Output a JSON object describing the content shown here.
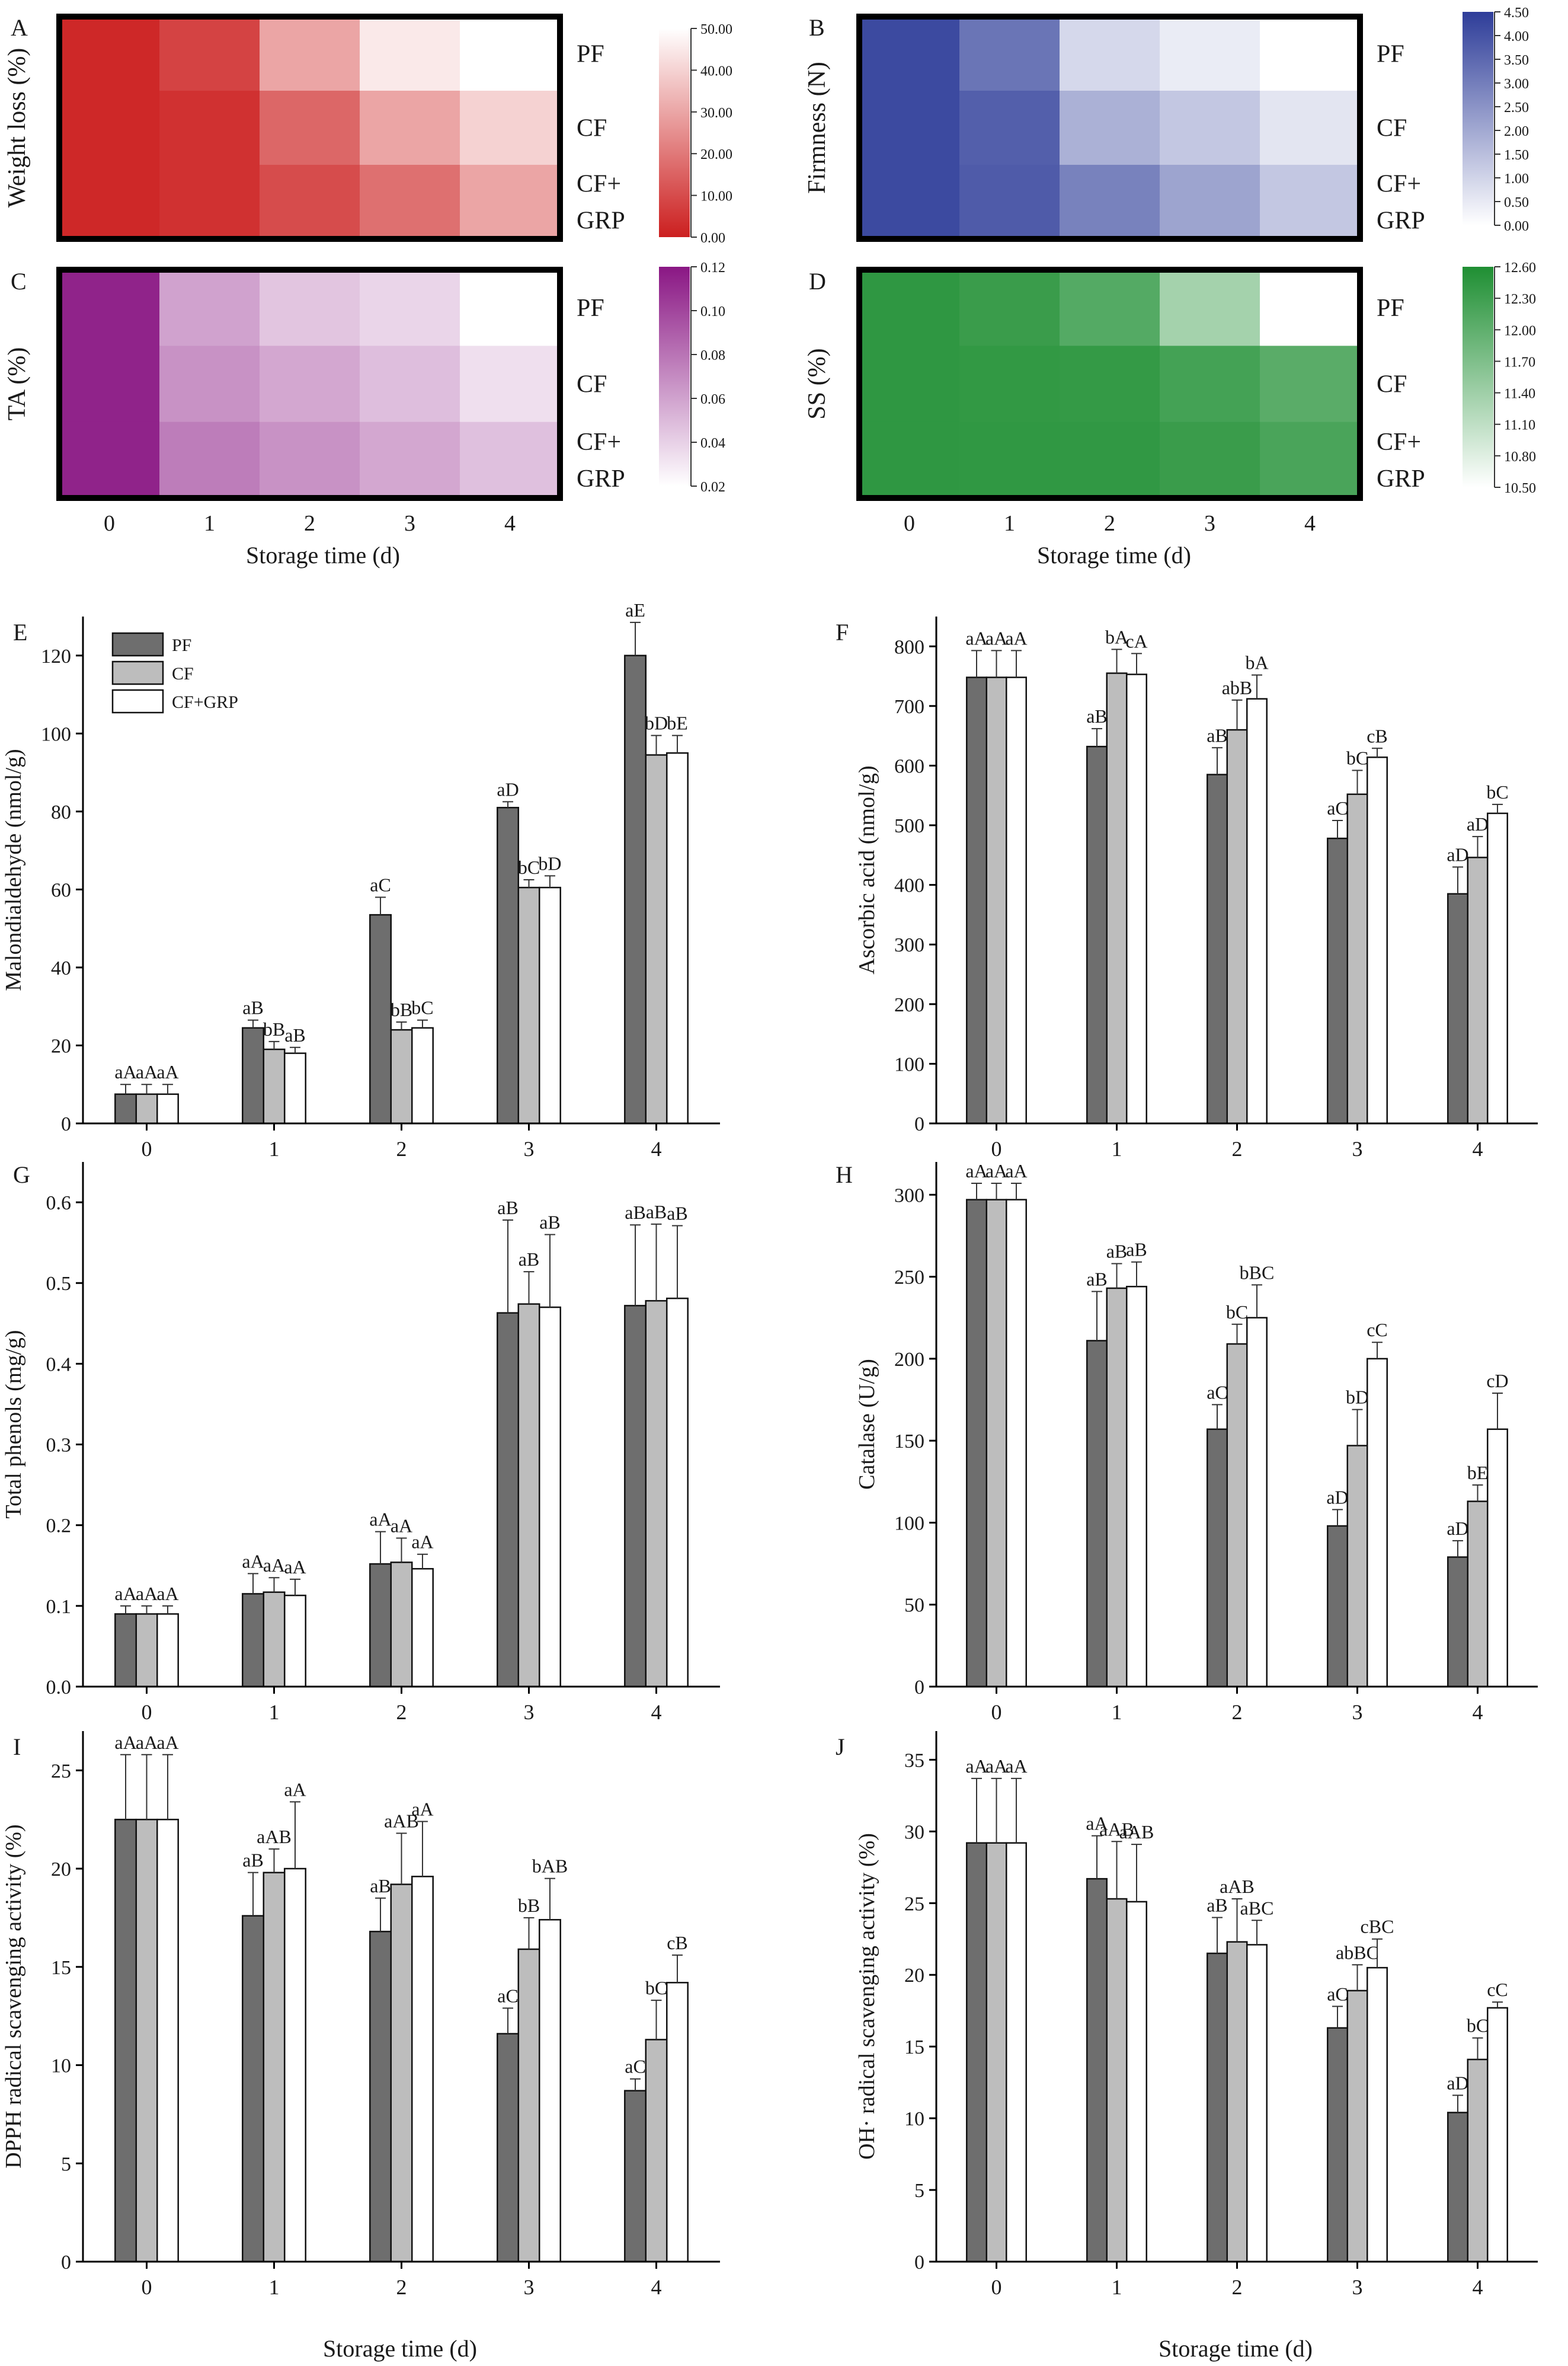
{
  "figure": {
    "storage_time_label": "Storage time (d)",
    "days": [
      "0",
      "1",
      "2",
      "3",
      "4"
    ],
    "treatments": [
      "PF",
      "CF",
      "CF+GRP"
    ],
    "heatmap_row_labels": [
      "PF",
      "CF",
      "CF+\nGRP"
    ],
    "colors": {
      "PF": "#6e6e6e",
      "CF": "#bdbdbd",
      "CF+GRP": "#ffffff",
      "axis": "#1a1a1a"
    }
  },
  "chart_data": [
    {
      "panel": "A",
      "type": "heatmap",
      "ylabel": "Weight loss (%)",
      "colormap": [
        "#cc1f1f",
        "#ffffff"
      ],
      "colorbar": {
        "ticks": [
          "50.00",
          "40.00",
          "30.00",
          "20.00",
          "10.00",
          "0.00"
        ],
        "min": 0,
        "max": 50
      },
      "rows": [
        "PF",
        "CF",
        "CF+GRP"
      ],
      "cols": [
        "0",
        "1",
        "2",
        "3",
        "4"
      ],
      "values": [
        [
          2,
          8,
          30,
          45,
          55
        ],
        [
          2,
          4,
          16,
          30,
          40
        ],
        [
          2,
          4,
          10,
          18,
          30
        ]
      ]
    },
    {
      "panel": "B",
      "type": "heatmap",
      "ylabel": "Firmness (N)",
      "colormap": [
        "#ffffff",
        "#2e3d99"
      ],
      "colorbar": {
        "ticks": [
          "4.50",
          "4.00",
          "3.50",
          "3.00",
          "2.50",
          "2.00",
          "1.50",
          "1.00",
          "0.50",
          "0.00"
        ],
        "min": 0,
        "max": 4.5
      },
      "rows": [
        "PF",
        "CF",
        "CF+GRP"
      ],
      "cols": [
        "0",
        "1",
        "2",
        "3",
        "4"
      ],
      "values": [
        [
          4.2,
          3.2,
          0.9,
          0.45,
          0.0
        ],
        [
          4.2,
          3.7,
          1.8,
          1.3,
          0.6
        ],
        [
          4.2,
          3.8,
          2.9,
          2.1,
          1.3
        ]
      ]
    },
    {
      "panel": "C",
      "type": "heatmap",
      "ylabel": "TA (%)",
      "colormap": [
        "#ffffff",
        "#8a1784"
      ],
      "colorbar": {
        "ticks": [
          "0.12",
          "0.10",
          "0.08",
          "0.06",
          "0.04",
          "0.02"
        ],
        "min": 0.02,
        "max": 0.12
      },
      "rows": [
        "PF",
        "CF",
        "CF+GRP"
      ],
      "cols": [
        "0",
        "1",
        "2",
        "3",
        "4"
      ],
      "values": [
        [
          0.115,
          0.06,
          0.045,
          0.038,
          0.018
        ],
        [
          0.115,
          0.067,
          0.058,
          0.048,
          0.034
        ],
        [
          0.115,
          0.076,
          0.067,
          0.058,
          0.047
        ]
      ]
    },
    {
      "panel": "D",
      "type": "heatmap",
      "ylabel": "SS (%)",
      "colormap": [
        "#ffffff",
        "#1f8f33"
      ],
      "colorbar": {
        "ticks": [
          "12.60",
          "12.30",
          "12.00",
          "11.70",
          "11.40",
          "11.10",
          "10.80",
          "10.50"
        ],
        "min": 10.5,
        "max": 12.6
      },
      "rows": [
        "PF",
        "CF",
        "CF+GRP"
      ],
      "cols": [
        "0",
        "1",
        "2",
        "3",
        "4"
      ],
      "values": [
        [
          12.45,
          12.35,
          12.1,
          11.35,
          10.45
        ],
        [
          12.45,
          12.42,
          12.4,
          12.25,
          12.05
        ],
        [
          12.45,
          12.44,
          12.43,
          12.35,
          12.2
        ]
      ]
    },
    {
      "panel": "E",
      "type": "bar",
      "ylabel": "Malondialdehyde (nmol/g)",
      "ylim": [
        0,
        130
      ],
      "yticks": [
        "0",
        "20",
        "40",
        "60",
        "80",
        "100",
        "120"
      ],
      "legend": [
        "PF",
        "CF",
        "CF+GRP"
      ],
      "series": [
        {
          "name": "PF",
          "values": [
            7.5,
            24.5,
            53.5,
            81.0,
            120.0
          ],
          "err": [
            2.5,
            2.0,
            4.5,
            1.5,
            8.5
          ],
          "labels": [
            "aA",
            "aB",
            "aC",
            "aD",
            "aE"
          ]
        },
        {
          "name": "CF",
          "values": [
            7.5,
            19.0,
            24.0,
            60.5,
            94.5
          ],
          "err": [
            2.5,
            2.0,
            2.0,
            2.0,
            5.0
          ],
          "labels": [
            "aA",
            "bB",
            "bB",
            "bC",
            "bD"
          ]
        },
        {
          "name": "CF+GRP",
          "values": [
            7.5,
            18.0,
            24.5,
            60.5,
            95.0
          ],
          "err": [
            2.5,
            1.5,
            2.0,
            3.0,
            4.5
          ],
          "labels": [
            "aA",
            "aB",
            "bC",
            "bD",
            "bE"
          ]
        }
      ]
    },
    {
      "panel": "F",
      "type": "bar",
      "ylabel": "Ascorbic acid (nmol/g)",
      "ylim": [
        0,
        850
      ],
      "yticks": [
        "0",
        "100",
        "200",
        "300",
        "400",
        "500",
        "600",
        "700",
        "800"
      ],
      "series": [
        {
          "name": "PF",
          "values": [
            748,
            632,
            585,
            478,
            385
          ],
          "err": [
            45,
            30,
            45,
            30,
            45
          ],
          "labels": [
            "aA",
            "aB",
            "aB",
            "aC",
            "aD"
          ]
        },
        {
          "name": "CF",
          "values": [
            748,
            755,
            660,
            552,
            446
          ],
          "err": [
            45,
            40,
            50,
            40,
            35
          ],
          "labels": [
            "aA",
            "bA",
            "abB",
            "bC",
            "aD"
          ]
        },
        {
          "name": "CF+GRP",
          "values": [
            748,
            753,
            712,
            614,
            520
          ],
          "err": [
            45,
            35,
            40,
            15,
            15
          ],
          "labels": [
            "aA",
            "cA",
            "bA",
            "cB",
            "bC"
          ]
        }
      ]
    },
    {
      "panel": "G",
      "type": "bar",
      "ylabel": "Total phenols (mg/g)",
      "ylim": [
        0,
        0.65
      ],
      "yticks": [
        "0.0",
        "0.1",
        "0.2",
        "0.3",
        "0.4",
        "0.5",
        "0.6"
      ],
      "series": [
        {
          "name": "PF",
          "values": [
            0.09,
            0.115,
            0.152,
            0.463,
            0.472
          ],
          "err": [
            0.01,
            0.025,
            0.04,
            0.115,
            0.1
          ],
          "labels": [
            "aA",
            "aA",
            "aA",
            "aB",
            "aB"
          ]
        },
        {
          "name": "CF",
          "values": [
            0.09,
            0.117,
            0.154,
            0.474,
            0.478
          ],
          "err": [
            0.01,
            0.018,
            0.03,
            0.04,
            0.095
          ],
          "labels": [
            "aA",
            "aA",
            "aA",
            "aB",
            "aB"
          ]
        },
        {
          "name": "CF+GRP",
          "values": [
            0.09,
            0.113,
            0.146,
            0.47,
            0.481
          ],
          "err": [
            0.01,
            0.02,
            0.018,
            0.09,
            0.09
          ],
          "labels": [
            "aA",
            "aA",
            "aA",
            "aB",
            "aB"
          ]
        }
      ]
    },
    {
      "panel": "H",
      "type": "bar",
      "ylabel": "Catalase (U/g)",
      "ylim": [
        0,
        320
      ],
      "yticks": [
        "0",
        "50",
        "100",
        "150",
        "200",
        "250",
        "300"
      ],
      "series": [
        {
          "name": "PF",
          "values": [
            297,
            211,
            157,
            98,
            79
          ],
          "err": [
            10,
            30,
            15,
            10,
            10
          ],
          "labels": [
            "aA",
            "aB",
            "aC",
            "aD",
            "aD"
          ]
        },
        {
          "name": "CF",
          "values": [
            297,
            243,
            209,
            147,
            113
          ],
          "err": [
            10,
            15,
            12,
            22,
            10
          ],
          "labels": [
            "aA",
            "aB",
            "bC",
            "bD",
            "bE"
          ]
        },
        {
          "name": "CF+GRP",
          "values": [
            297,
            244,
            225,
            200,
            157
          ],
          "err": [
            10,
            15,
            20,
            10,
            22
          ],
          "labels": [
            "aA",
            "aB",
            "bBC",
            "cC",
            "cD"
          ]
        }
      ]
    },
    {
      "panel": "I",
      "type": "bar",
      "ylabel": "DPPH radical scavenging activity (%)",
      "ylim": [
        0,
        27
      ],
      "yticks": [
        "0",
        "5",
        "10",
        "15",
        "20",
        "25"
      ],
      "series": [
        {
          "name": "PF",
          "values": [
            22.5,
            17.6,
            16.8,
            11.6,
            8.7
          ],
          "err": [
            3.3,
            2.2,
            1.7,
            1.3,
            0.6
          ],
          "labels": [
            "aA",
            "aB",
            "aB",
            "aC",
            "aC"
          ]
        },
        {
          "name": "CF",
          "values": [
            22.5,
            19.8,
            19.2,
            15.9,
            11.3
          ],
          "err": [
            3.3,
            1.2,
            2.6,
            1.6,
            2.0
          ],
          "labels": [
            "aA",
            "aAB",
            "aAB",
            "bB",
            "bC"
          ]
        },
        {
          "name": "CF+GRP",
          "values": [
            22.5,
            20.0,
            19.6,
            17.4,
            14.2
          ],
          "err": [
            3.3,
            3.4,
            2.8,
            2.1,
            1.4
          ],
          "labels": [
            "aA",
            "aA",
            "aA",
            "bAB",
            "cB"
          ]
        }
      ]
    },
    {
      "panel": "J",
      "type": "bar",
      "ylabel": "OH· radical scavenging activity (%)",
      "ylim": [
        0,
        37
      ],
      "yticks": [
        "0",
        "5",
        "10",
        "15",
        "20",
        "25",
        "30",
        "35"
      ],
      "series": [
        {
          "name": "PF",
          "values": [
            29.2,
            26.7,
            21.5,
            16.3,
            10.4
          ],
          "err": [
            4.5,
            3.0,
            2.5,
            1.5,
            1.2
          ],
          "labels": [
            "aA",
            "aA",
            "aB",
            "aC",
            "aD"
          ]
        },
        {
          "name": "CF",
          "values": [
            29.2,
            25.3,
            22.3,
            18.9,
            14.1
          ],
          "err": [
            4.5,
            4.0,
            3.0,
            1.8,
            1.5
          ],
          "labels": [
            "aA",
            "aAB",
            "aAB",
            "abBC",
            "bC"
          ]
        },
        {
          "name": "CF+GRP",
          "values": [
            29.2,
            25.1,
            22.1,
            20.5,
            17.7
          ],
          "err": [
            4.5,
            4.0,
            1.7,
            2.0,
            0.4
          ],
          "labels": [
            "aA",
            "aAB",
            "aBC",
            "cBC",
            "cC"
          ]
        }
      ]
    }
  ]
}
